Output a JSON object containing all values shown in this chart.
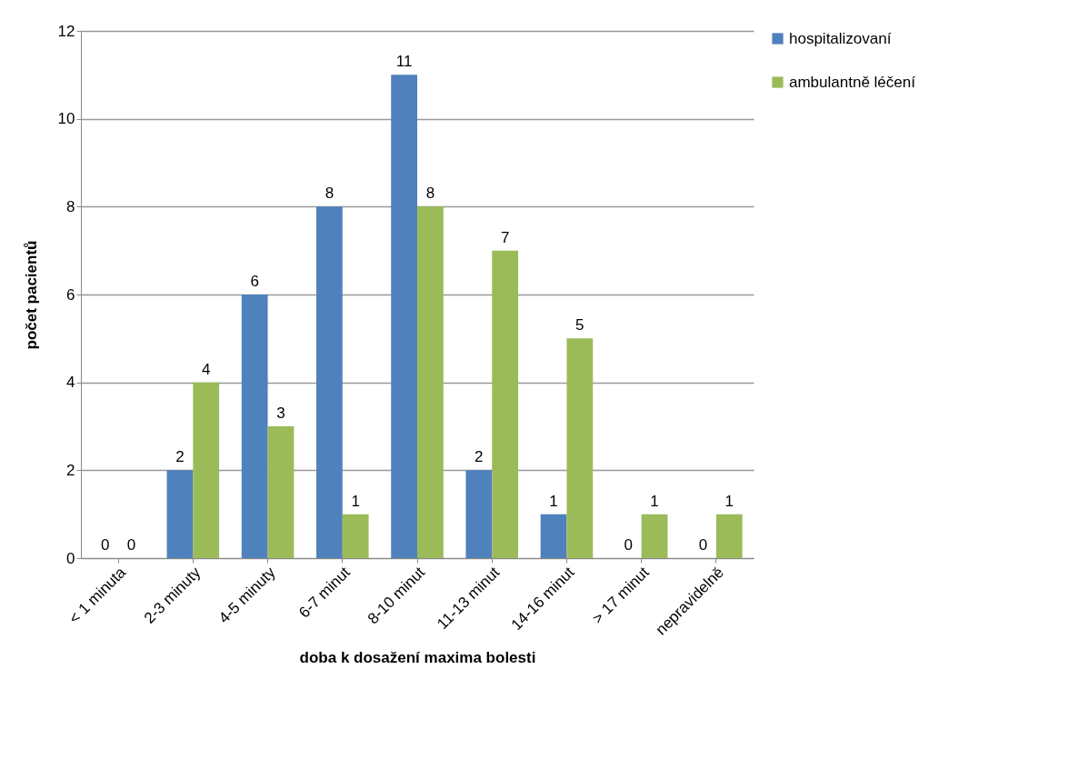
{
  "chart_data": {
    "type": "bar",
    "xlabel": "doba k dosažení maxima bolesti",
    "ylabel": "počet pacientů",
    "categories": [
      "< 1 minuta",
      "2-3 minuty",
      "4-5 minuty",
      "6-7 minut",
      "8-10 minut",
      "11-13 minut",
      "14-16 minut",
      "> 17 minut",
      "nepravidelně"
    ],
    "series": [
      {
        "name": "hospitalizovaní",
        "color": "#4f81bd",
        "values": [
          0,
          2,
          6,
          8,
          11,
          2,
          1,
          0,
          0
        ]
      },
      {
        "name": "ambulantně léčení",
        "color": "#9bbb59",
        "values": [
          0,
          4,
          3,
          1,
          8,
          7,
          5,
          1,
          1
        ]
      }
    ],
    "ylim": [
      0,
      12
    ],
    "yticks": [
      0,
      2,
      4,
      6,
      8,
      10,
      12
    ],
    "grid": "y",
    "legend": "right",
    "data_labels": true
  }
}
